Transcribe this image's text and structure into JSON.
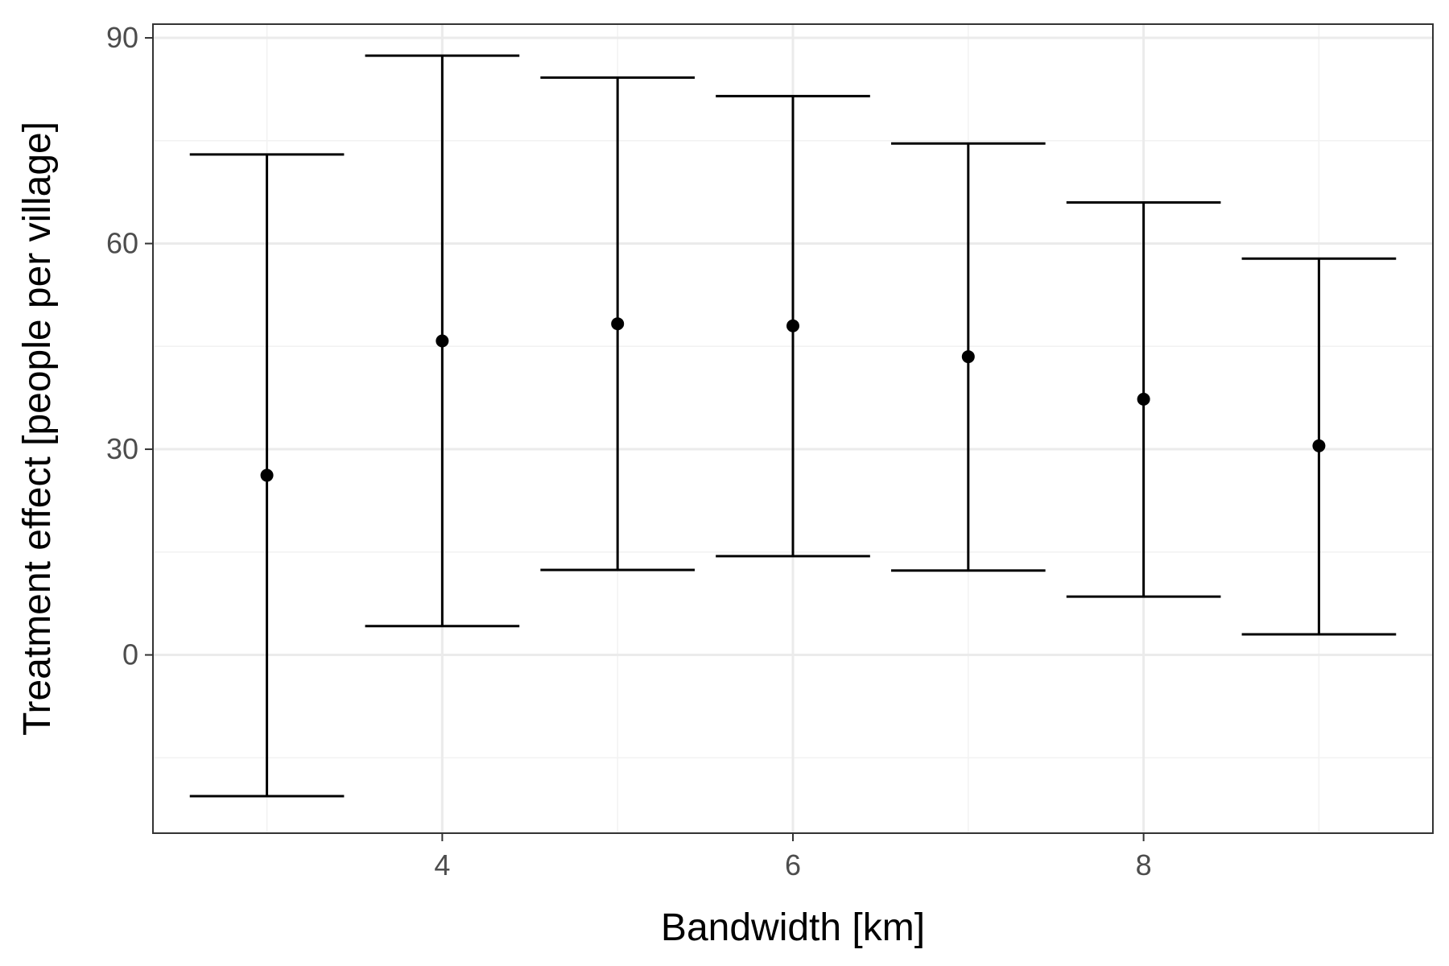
{
  "chart_data": {
    "type": "errorbar",
    "xlabel": "Bandwidth [km]",
    "ylabel": "Treatment effect [people per village]",
    "xlim": [
      2.35,
      9.65
    ],
    "ylim": [
      -26,
      92
    ],
    "xticks": [
      4,
      6,
      8
    ],
    "yticks": [
      0,
      30,
      60,
      90
    ],
    "x_minor_gridlines": [
      3,
      5,
      7,
      9
    ],
    "y_minor_gridlines": [
      -15,
      15,
      45,
      75
    ],
    "grid": true,
    "errorbar_cap_width": 0.88,
    "points": [
      {
        "x": 3,
        "estimate": 26.2,
        "lower": -20.6,
        "upper": 73.0
      },
      {
        "x": 4,
        "estimate": 45.8,
        "lower": 4.2,
        "upper": 87.4
      },
      {
        "x": 5,
        "estimate": 48.3,
        "lower": 12.4,
        "upper": 84.2
      },
      {
        "x": 6,
        "estimate": 48.0,
        "lower": 14.4,
        "upper": 81.5
      },
      {
        "x": 7,
        "estimate": 43.5,
        "lower": 12.3,
        "upper": 74.6
      },
      {
        "x": 8,
        "estimate": 37.3,
        "lower": 8.5,
        "upper": 66.0
      },
      {
        "x": 9,
        "estimate": 30.5,
        "lower": 3.0,
        "upper": 57.8
      }
    ],
    "colors": {
      "background": "#ffffff",
      "panel_border": "#333333",
      "grid_major": "#ebebeb",
      "grid_minor": "#f2f2f2",
      "marks": "#000000",
      "tick_text": "#4d4d4d"
    }
  }
}
